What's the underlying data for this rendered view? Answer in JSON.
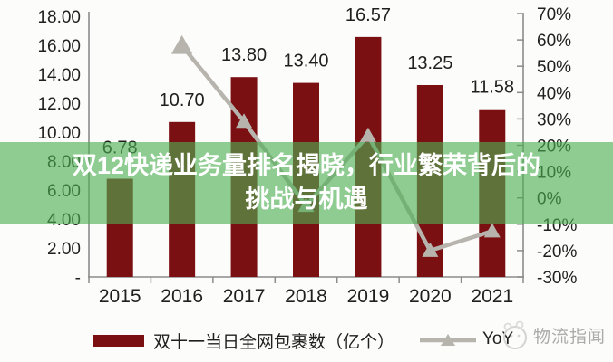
{
  "title": {
    "line1": "双12快递业务量排名揭晓，行业繁荣背后的",
    "line2": "挑战与机遇"
  },
  "chart_data": {
    "type": "bar",
    "categories": [
      "2015",
      "2016",
      "2017",
      "2018",
      "2019",
      "2020",
      "2021"
    ],
    "series": [
      {
        "name": "双十一当日全网包裹数（亿个）",
        "type": "bar",
        "axis": "left",
        "values": [
          6.78,
          10.7,
          13.8,
          13.4,
          16.57,
          13.25,
          11.58
        ],
        "value_labels": [
          "6.78",
          "10.70",
          "13.80",
          "13.40",
          "16.57",
          "13.25",
          "11.58"
        ]
      },
      {
        "name": "YoY",
        "type": "line",
        "axis": "right",
        "values": [
          null,
          57.8,
          29.0,
          -2.9,
          23.7,
          -20.0,
          -12.6
        ]
      }
    ],
    "left_axis": {
      "min": 0,
      "max": 18,
      "tick_values": [
        18,
        16,
        14,
        12,
        10,
        8,
        6,
        4,
        2,
        0
      ],
      "tick_labels": [
        "18.00",
        "16.00",
        "14.00",
        "12.00",
        "10.00",
        "8.00",
        "6.00",
        "4.00",
        "2.00",
        "-"
      ]
    },
    "right_axis": {
      "min": -30,
      "max": 70,
      "tick_values": [
        70,
        60,
        50,
        40,
        30,
        20,
        10,
        0,
        -10,
        -20,
        -30
      ],
      "tick_labels": [
        "70%",
        "60%",
        "50%",
        "40%",
        "30%",
        "20%",
        "10%",
        "0%",
        "-10%",
        "-20%",
        "-30%"
      ]
    },
    "grid": false,
    "legend_position": "bottom"
  },
  "watermark": {
    "text": "物流指闻"
  },
  "colors": {
    "bar": "#7b1013",
    "line": "#b7b4ad",
    "axis": "#8c8c8c",
    "text": "#1f1f1f",
    "overlay": "rgba(76,175,80,0.62)",
    "title_text": "#ffffff",
    "watermark": "#ababab"
  }
}
